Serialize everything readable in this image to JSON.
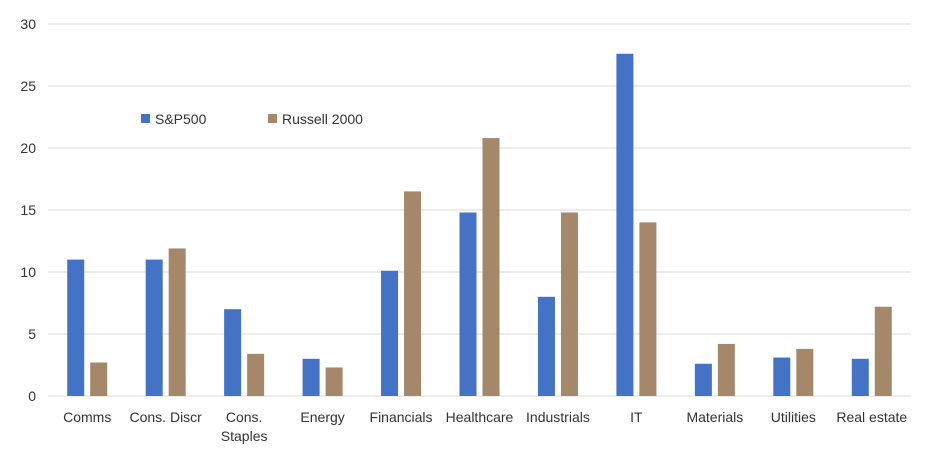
{
  "chart_data": {
    "type": "bar",
    "title": "",
    "xlabel": "",
    "ylabel": "",
    "ylim": [
      0,
      30
    ],
    "yticks": [
      0,
      5,
      10,
      15,
      20,
      25,
      30
    ],
    "grid": true,
    "legend_position": "top-left",
    "categories": [
      [
        "Comms"
      ],
      [
        "Cons. Discr"
      ],
      [
        "Cons.",
        "Staples"
      ],
      [
        "Energy"
      ],
      [
        "Financials"
      ],
      [
        "Healthcare"
      ],
      [
        "Industrials"
      ],
      [
        "IT"
      ],
      [
        "Materials"
      ],
      [
        "Utilities"
      ],
      [
        "Real estate"
      ]
    ],
    "series": [
      {
        "name": "S&P500",
        "color": "#4472c4",
        "values": [
          11.0,
          11.0,
          7.0,
          3.0,
          10.1,
          14.8,
          8.0,
          27.6,
          2.6,
          3.1,
          3.0
        ]
      },
      {
        "name": "Russell 2000",
        "color": "#a5876a",
        "values": [
          2.7,
          11.9,
          3.4,
          2.3,
          16.5,
          20.8,
          14.8,
          14.0,
          4.2,
          3.8,
          7.2
        ]
      }
    ]
  }
}
